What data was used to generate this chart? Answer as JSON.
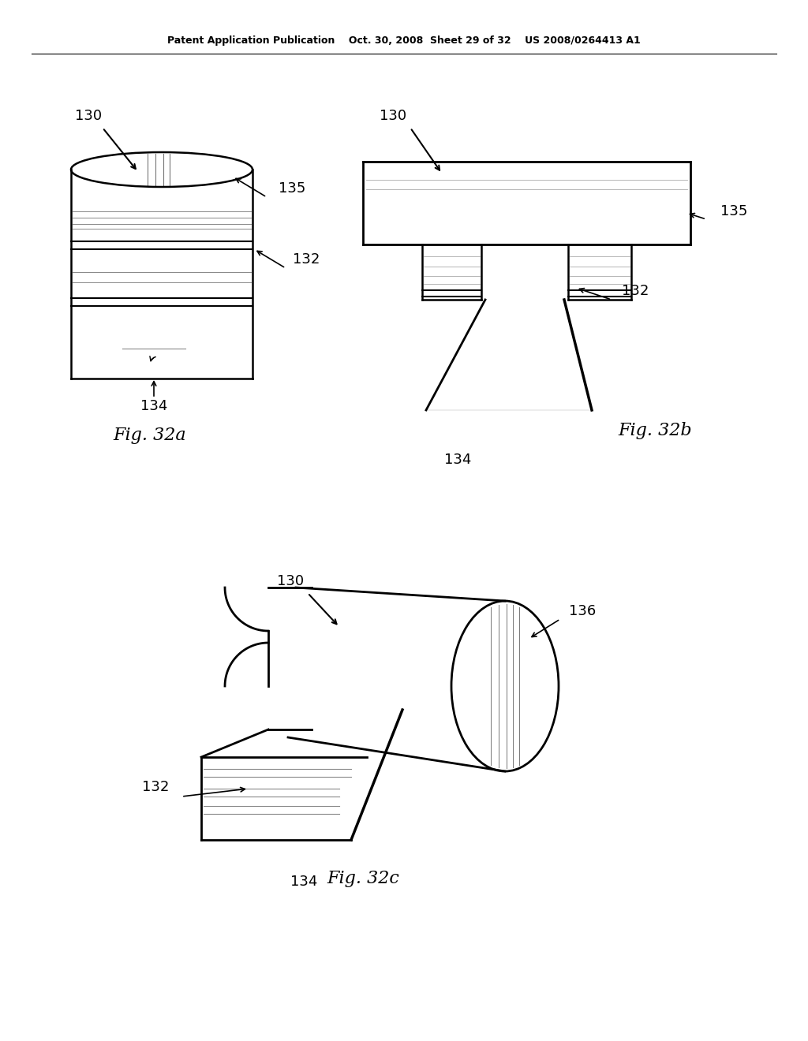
{
  "background_color": "#ffffff",
  "title_text": "Patent Application Publication    Oct. 30, 2008  Sheet 29 of 32    US 2008/0264413 A1",
  "fig32a_label": "Fig. 32a",
  "fig32b_label": "Fig. 32b",
  "fig32c_label": "Fig. 32c",
  "label_130": "130",
  "label_132": "132",
  "label_134": "134",
  "label_135": "135",
  "label_136": "136",
  "line_color": "#000000",
  "gray_color": "#888888"
}
